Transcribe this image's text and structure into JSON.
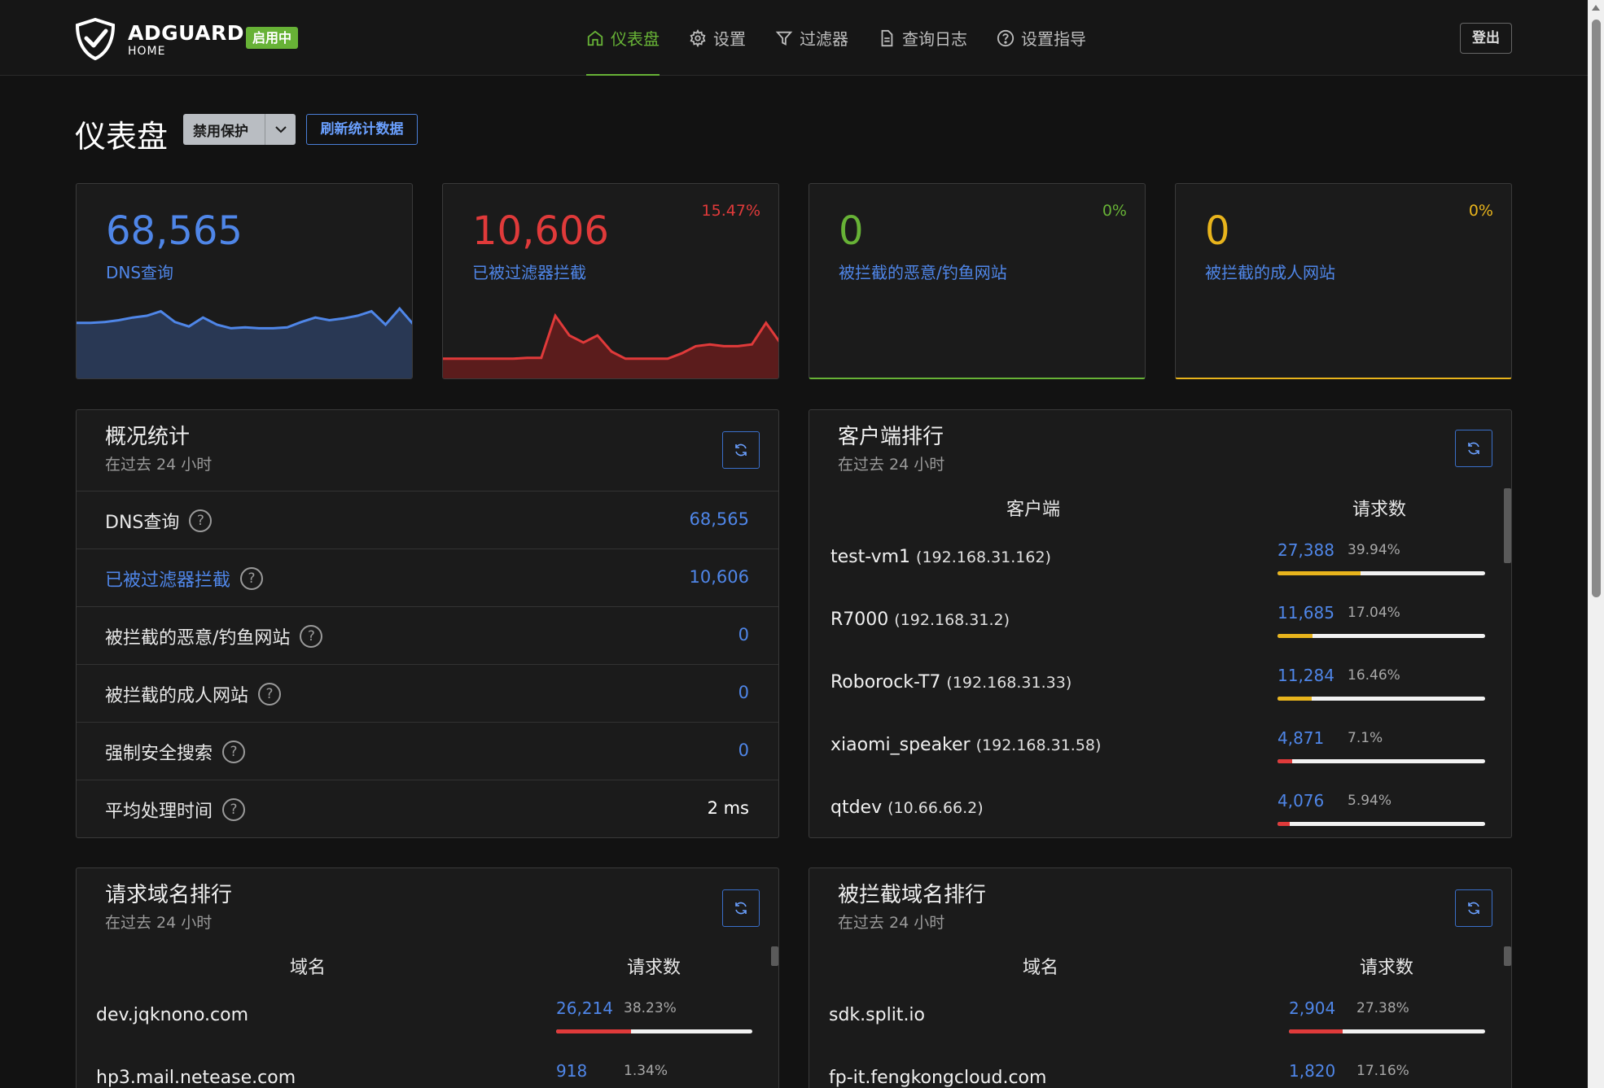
{
  "header": {
    "logo_text": "ADGUARD",
    "logo_sub": "HOME",
    "status": "启用中",
    "nav": [
      {
        "label": "仪表盘",
        "icon": "home-icon",
        "active": true
      },
      {
        "label": "设置",
        "icon": "gear-icon",
        "active": false
      },
      {
        "label": "过滤器",
        "icon": "filter-icon",
        "active": false
      },
      {
        "label": "查询日志",
        "icon": "document-icon",
        "active": false
      },
      {
        "label": "设置指导",
        "icon": "help-circle-icon",
        "active": false
      }
    ],
    "logout": "登出"
  },
  "toolbar": {
    "title": "仪表盘",
    "disable_protection": "禁用保护",
    "refresh_stats": "刷新统计数据"
  },
  "cards": [
    {
      "value": "68,565",
      "label": "DNS查询",
      "pct": "",
      "color": "#4f86e8"
    },
    {
      "value": "10,606",
      "label": "已被过滤器拦截",
      "pct": "15.47%",
      "color": "#e03a3a"
    },
    {
      "value": "0",
      "label": "被拦截的恶意/钓鱼网站",
      "pct": "0%",
      "color": "#67b236"
    },
    {
      "value": "0",
      "label": "被拦截的成人网站",
      "pct": "0%",
      "color": "#e8b41c"
    }
  ],
  "sparklines": {
    "dns": [
      62,
      62,
      63,
      65,
      68,
      70,
      75,
      63,
      58,
      68,
      60,
      56,
      57,
      56,
      56,
      57,
      63,
      68,
      65,
      67,
      70,
      75,
      60,
      78,
      60
    ],
    "blocked": [
      22,
      22,
      22,
      22,
      22,
      22,
      23,
      23,
      70,
      48,
      40,
      48,
      30,
      22,
      22,
      22,
      22,
      28,
      36,
      38,
      36,
      36,
      38,
      62,
      40
    ]
  },
  "general": {
    "title": "概况统计",
    "subtitle": "在过去 24 小时",
    "rows": [
      {
        "name": "DNS查询",
        "value": "68,565",
        "link": false
      },
      {
        "name": "已被过滤器拦截",
        "value": "10,606",
        "link": true
      },
      {
        "name": "被拦截的恶意/钓鱼网站",
        "value": "0",
        "link": false
      },
      {
        "name": "被拦截的成人网站",
        "value": "0",
        "link": false
      },
      {
        "name": "强制安全搜索",
        "value": "0",
        "link": false
      },
      {
        "name": "平均处理时间",
        "value": "2 ms",
        "link": false
      }
    ]
  },
  "clients": {
    "title": "客户端排行",
    "subtitle": "在过去 24 小时",
    "col_client": "客户端",
    "col_requests": "请求数",
    "rows": [
      {
        "name": "test-vm1",
        "ip": "(192.168.31.162)",
        "count": "27,388",
        "pct": "39.94%",
        "fraction": 0.3994,
        "color": "#e8b41c"
      },
      {
        "name": "R7000",
        "ip": "(192.168.31.2)",
        "count": "11,685",
        "pct": "17.04%",
        "fraction": 0.1704,
        "color": "#e8b41c"
      },
      {
        "name": "Roborock-T7",
        "ip": "(192.168.31.33)",
        "count": "11,284",
        "pct": "16.46%",
        "fraction": 0.1646,
        "color": "#e8b41c"
      },
      {
        "name": "xiaomi_speaker",
        "ip": "(192.168.31.58)",
        "count": "4,871",
        "pct": "7.1%",
        "fraction": 0.071,
        "color": "#e03a3a"
      },
      {
        "name": "qtdev",
        "ip": "(10.66.66.2)",
        "count": "4,076",
        "pct": "5.94%",
        "fraction": 0.0594,
        "color": "#e03a3a"
      }
    ]
  },
  "domains": {
    "title": "请求域名排行",
    "subtitle": "在过去 24 小时",
    "col_domain": "域名",
    "col_requests": "请求数",
    "rows": [
      {
        "name": "dev.jqknono.com",
        "count": "26,214",
        "pct": "38.23%",
        "fraction": 0.3823,
        "color": "#e03a3a"
      },
      {
        "name": "hp3.mail.netease.com",
        "count": "918",
        "pct": "1.34%",
        "fraction": 0.0134,
        "color": "#e03a3a"
      }
    ]
  },
  "blocked_domains": {
    "title": "被拦截域名排行",
    "subtitle": "在过去 24 小时",
    "col_domain": "域名",
    "col_requests": "请求数",
    "rows": [
      {
        "name": "sdk.split.io",
        "count": "2,904",
        "pct": "27.38%",
        "fraction": 0.2738,
        "color": "#e03a3a"
      },
      {
        "name": "fp-it.fengkongcloud.com",
        "count": "1,820",
        "pct": "17.16%",
        "fraction": 0.1716,
        "color": "#e03a3a"
      }
    ]
  }
}
